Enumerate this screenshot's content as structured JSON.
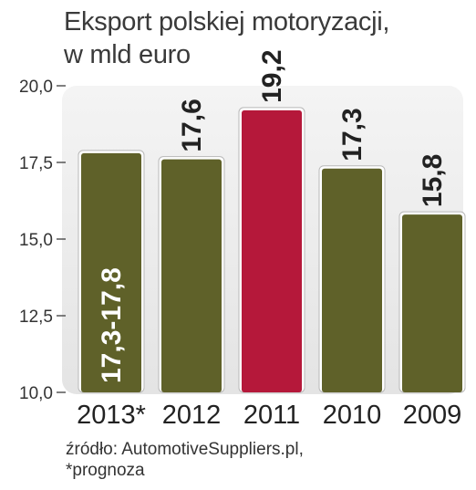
{
  "chart_data": {
    "type": "bar",
    "title": "Eksport polskiej motoryzacji,",
    "subtitle": "w mld euro",
    "xlabel": "",
    "ylabel": "",
    "categories": [
      "2013*",
      "2012",
      "2011",
      "2010",
      "2009"
    ],
    "values": [
      17.8,
      17.6,
      19.2,
      17.3,
      15.8
    ],
    "value_labels": [
      "17,3-17,8",
      "17,6",
      "19,2",
      "17,3",
      "15,8"
    ],
    "ylim": [
      10.0,
      20.0
    ],
    "yticks": [
      {
        "value": 20.0,
        "label": "20,0"
      },
      {
        "value": 17.5,
        "label": "17,5"
      },
      {
        "value": 15.0,
        "label": "15,0"
      },
      {
        "value": 12.5,
        "label": "12,5"
      },
      {
        "value": 10.0,
        "label": "10,0"
      }
    ],
    "highlight_index": 2,
    "label_inside_index": 0,
    "grid": false,
    "colors": {
      "bar": "#5f6129",
      "highlight": "#b5183a",
      "panel": "#e6e6e6",
      "value_text": "#222222",
      "value_text_inside": "#ffffff"
    }
  },
  "footer": {
    "source": "źródło: AutomotiveSuppliers.pl,",
    "note": "*prognoza"
  }
}
